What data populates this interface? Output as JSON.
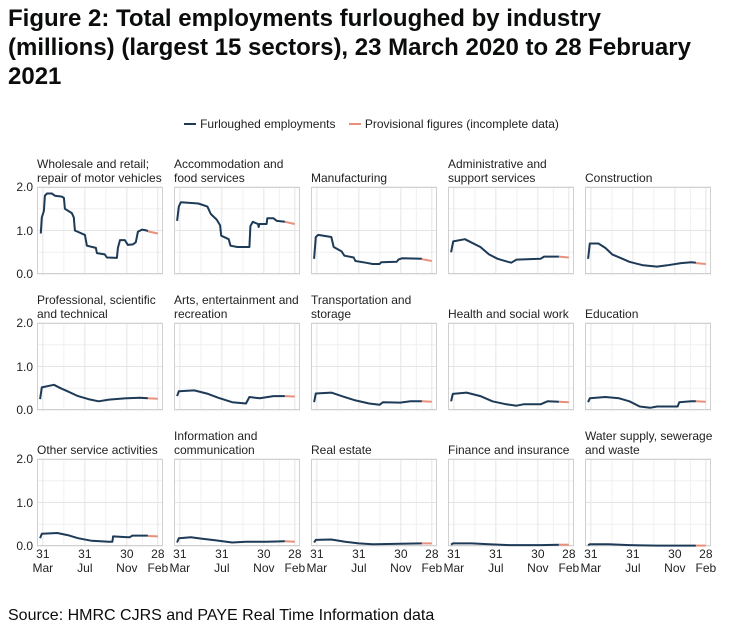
{
  "title": "Figure 2: Total employments furloughed by industry (millions) (largest 15 sectors), 23 March 2020 to 28 February 2021",
  "legend": {
    "main": "Furloughed employments",
    "provisional": "Provisional figures (incomplete data)"
  },
  "source": "Source: HMRC CJRS and PAYE Real Time Information data",
  "colors": {
    "main": "#1d3a57",
    "provisional": "#e8907c",
    "grid": "#e4e4e4",
    "border": "#d0d0d0"
  },
  "chart_data": {
    "type": "line",
    "x_unit": "days since 23 March 2020",
    "xlim": [
      -9,
      357
    ],
    "ylim": [
      0,
      2
    ],
    "yticks": [
      {
        "v": 0,
        "label": "0.0"
      },
      {
        "v": 1,
        "label": "1.0"
      },
      {
        "v": 2,
        "label": "2.0"
      }
    ],
    "xticks": [
      {
        "v": 8,
        "d": "31",
        "m": "Mar"
      },
      {
        "v": 130,
        "d": "31",
        "m": "Jul"
      },
      {
        "v": 252,
        "d": "30",
        "m": "Nov"
      },
      {
        "v": 342,
        "d": "28",
        "m": "Feb"
      }
    ],
    "panels": [
      {
        "title": "Wholesale and retail; repair of motor vehicles",
        "main": [
          [
            2,
            0.93
          ],
          [
            5,
            1.3
          ],
          [
            11,
            1.45
          ],
          [
            14,
            1.8
          ],
          [
            20,
            1.85
          ],
          [
            34,
            1.85
          ],
          [
            43,
            1.8
          ],
          [
            63,
            1.78
          ],
          [
            69,
            1.75
          ],
          [
            72,
            1.5
          ],
          [
            92,
            1.4
          ],
          [
            98,
            1.3
          ],
          [
            101,
            1.0
          ],
          [
            130,
            0.9
          ],
          [
            136,
            0.65
          ],
          [
            162,
            0.6
          ],
          [
            165,
            0.48
          ],
          [
            188,
            0.45
          ],
          [
            194,
            0.38
          ],
          [
            223,
            0.37
          ],
          [
            226,
            0.6
          ],
          [
            232,
            0.78
          ],
          [
            246,
            0.78
          ],
          [
            255,
            0.67
          ],
          [
            270,
            0.68
          ],
          [
            278,
            0.73
          ],
          [
            284,
            0.97
          ],
          [
            296,
            1.02
          ],
          [
            310,
            1.0
          ],
          [
            313,
            0.98
          ]
        ],
        "provisional": [
          [
            313,
            0.98
          ],
          [
            342,
            0.93
          ]
        ]
      },
      {
        "title": "Accommodation and food services",
        "main": [
          [
            0,
            1.22
          ],
          [
            5,
            1.55
          ],
          [
            11,
            1.65
          ],
          [
            62,
            1.62
          ],
          [
            88,
            1.55
          ],
          [
            98,
            1.38
          ],
          [
            115,
            1.25
          ],
          [
            125,
            1.12
          ],
          [
            128,
            0.88
          ],
          [
            150,
            0.8
          ],
          [
            155,
            0.65
          ],
          [
            175,
            0.62
          ],
          [
            210,
            0.62
          ],
          [
            213,
            1.1
          ],
          [
            220,
            1.2
          ],
          [
            235,
            1.15
          ],
          [
            237,
            1.08
          ],
          [
            239,
            1.15
          ],
          [
            260,
            1.15
          ],
          [
            262,
            1.28
          ],
          [
            280,
            1.28
          ],
          [
            290,
            1.22
          ],
          [
            313,
            1.2
          ]
        ],
        "provisional": [
          [
            313,
            1.2
          ],
          [
            342,
            1.15
          ]
        ]
      },
      {
        "title": "Manufacturing",
        "main": [
          [
            0,
            0.35
          ],
          [
            5,
            0.85
          ],
          [
            12,
            0.9
          ],
          [
            50,
            0.85
          ],
          [
            57,
            0.62
          ],
          [
            80,
            0.52
          ],
          [
            88,
            0.42
          ],
          [
            115,
            0.38
          ],
          [
            120,
            0.3
          ],
          [
            150,
            0.26
          ],
          [
            170,
            0.23
          ],
          [
            190,
            0.23
          ],
          [
            195,
            0.27
          ],
          [
            240,
            0.28
          ],
          [
            245,
            0.33
          ],
          [
            255,
            0.36
          ],
          [
            313,
            0.35
          ]
        ],
        "provisional": [
          [
            313,
            0.34
          ],
          [
            342,
            0.3
          ]
        ]
      },
      {
        "title": "Administrative and support services",
        "main": [
          [
            0,
            0.5
          ],
          [
            6,
            0.75
          ],
          [
            40,
            0.8
          ],
          [
            60,
            0.72
          ],
          [
            85,
            0.62
          ],
          [
            110,
            0.45
          ],
          [
            135,
            0.35
          ],
          [
            165,
            0.28
          ],
          [
            175,
            0.26
          ],
          [
            190,
            0.33
          ],
          [
            260,
            0.35
          ],
          [
            270,
            0.4
          ],
          [
            313,
            0.4
          ]
        ],
        "provisional": [
          [
            313,
            0.4
          ],
          [
            342,
            0.38
          ]
        ]
      },
      {
        "title": "Construction",
        "main": [
          [
            0,
            0.35
          ],
          [
            5,
            0.7
          ],
          [
            30,
            0.7
          ],
          [
            50,
            0.6
          ],
          [
            70,
            0.45
          ],
          [
            100,
            0.35
          ],
          [
            120,
            0.28
          ],
          [
            160,
            0.2
          ],
          [
            200,
            0.17
          ],
          [
            230,
            0.2
          ],
          [
            270,
            0.25
          ],
          [
            300,
            0.27
          ],
          [
            313,
            0.26
          ]
        ],
        "provisional": [
          [
            313,
            0.25
          ],
          [
            342,
            0.23
          ]
        ]
      },
      {
        "title": "Professional, scientific and technical",
        "main": [
          [
            0,
            0.25
          ],
          [
            5,
            0.52
          ],
          [
            40,
            0.58
          ],
          [
            60,
            0.5
          ],
          [
            80,
            0.43
          ],
          [
            110,
            0.32
          ],
          [
            140,
            0.25
          ],
          [
            170,
            0.2
          ],
          [
            200,
            0.24
          ],
          [
            250,
            0.27
          ],
          [
            290,
            0.28
          ],
          [
            313,
            0.27
          ]
        ],
        "provisional": [
          [
            313,
            0.27
          ],
          [
            342,
            0.26
          ]
        ]
      },
      {
        "title": "Arts, entertainment and recreation",
        "main": [
          [
            0,
            0.32
          ],
          [
            5,
            0.43
          ],
          [
            50,
            0.45
          ],
          [
            90,
            0.37
          ],
          [
            120,
            0.28
          ],
          [
            160,
            0.18
          ],
          [
            200,
            0.15
          ],
          [
            210,
            0.3
          ],
          [
            240,
            0.27
          ],
          [
            280,
            0.32
          ],
          [
            313,
            0.32
          ]
        ],
        "provisional": [
          [
            313,
            0.32
          ],
          [
            342,
            0.31
          ]
        ]
      },
      {
        "title": "Transportation and storage",
        "main": [
          [
            0,
            0.18
          ],
          [
            5,
            0.38
          ],
          [
            50,
            0.4
          ],
          [
            80,
            0.32
          ],
          [
            120,
            0.22
          ],
          [
            160,
            0.15
          ],
          [
            190,
            0.12
          ],
          [
            200,
            0.18
          ],
          [
            250,
            0.17
          ],
          [
            280,
            0.2
          ],
          [
            313,
            0.2
          ]
        ],
        "provisional": [
          [
            313,
            0.2
          ],
          [
            342,
            0.19
          ]
        ]
      },
      {
        "title": "Health and social work",
        "main": [
          [
            0,
            0.2
          ],
          [
            5,
            0.37
          ],
          [
            45,
            0.4
          ],
          [
            85,
            0.32
          ],
          [
            120,
            0.2
          ],
          [
            160,
            0.13
          ],
          [
            190,
            0.1
          ],
          [
            210,
            0.13
          ],
          [
            260,
            0.13
          ],
          [
            280,
            0.2
          ],
          [
            313,
            0.19
          ]
        ],
        "provisional": [
          [
            313,
            0.19
          ],
          [
            342,
            0.18
          ]
        ]
      },
      {
        "title": "Education",
        "main": [
          [
            0,
            0.18
          ],
          [
            5,
            0.27
          ],
          [
            50,
            0.3
          ],
          [
            90,
            0.27
          ],
          [
            120,
            0.2
          ],
          [
            150,
            0.08
          ],
          [
            180,
            0.05
          ],
          [
            200,
            0.08
          ],
          [
            260,
            0.08
          ],
          [
            265,
            0.18
          ],
          [
            300,
            0.2
          ],
          [
            313,
            0.2
          ]
        ],
        "provisional": [
          [
            313,
            0.2
          ],
          [
            342,
            0.19
          ]
        ]
      },
      {
        "title": "Other service activities",
        "main": [
          [
            0,
            0.18
          ],
          [
            5,
            0.28
          ],
          [
            50,
            0.3
          ],
          [
            80,
            0.25
          ],
          [
            110,
            0.18
          ],
          [
            150,
            0.12
          ],
          [
            200,
            0.1
          ],
          [
            210,
            0.1
          ],
          [
            212,
            0.22
          ],
          [
            260,
            0.2
          ],
          [
            268,
            0.24
          ],
          [
            313,
            0.24
          ]
        ],
        "provisional": [
          [
            313,
            0.23
          ],
          [
            342,
            0.22
          ]
        ]
      },
      {
        "title": "Information and communication",
        "main": [
          [
            0,
            0.08
          ],
          [
            5,
            0.18
          ],
          [
            40,
            0.2
          ],
          [
            70,
            0.17
          ],
          [
            110,
            0.13
          ],
          [
            160,
            0.08
          ],
          [
            200,
            0.1
          ],
          [
            260,
            0.1
          ],
          [
            313,
            0.11
          ]
        ],
        "provisional": [
          [
            313,
            0.11
          ],
          [
            342,
            0.1
          ]
        ]
      },
      {
        "title": "Real estate",
        "main": [
          [
            0,
            0.08
          ],
          [
            5,
            0.14
          ],
          [
            50,
            0.15
          ],
          [
            90,
            0.1
          ],
          [
            130,
            0.06
          ],
          [
            170,
            0.04
          ],
          [
            250,
            0.05
          ],
          [
            313,
            0.06
          ]
        ],
        "provisional": [
          [
            313,
            0.06
          ],
          [
            342,
            0.06
          ]
        ]
      },
      {
        "title": "Finance and insurance",
        "main": [
          [
            0,
            0.03
          ],
          [
            5,
            0.06
          ],
          [
            60,
            0.06
          ],
          [
            110,
            0.04
          ],
          [
            170,
            0.02
          ],
          [
            260,
            0.02
          ],
          [
            313,
            0.03
          ]
        ],
        "provisional": [
          [
            313,
            0.03
          ],
          [
            342,
            0.03
          ]
        ]
      },
      {
        "title": "Water supply, sewerage and waste",
        "main": [
          [
            0,
            0.02
          ],
          [
            5,
            0.04
          ],
          [
            60,
            0.04
          ],
          [
            120,
            0.02
          ],
          [
            200,
            0.01
          ],
          [
            313,
            0.01
          ]
        ],
        "provisional": [
          [
            313,
            0.01
          ],
          [
            342,
            0.01
          ]
        ]
      }
    ]
  }
}
